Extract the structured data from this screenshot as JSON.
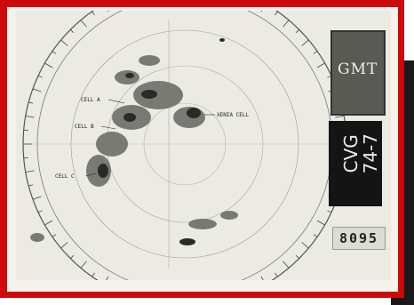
{
  "radar": {
    "cells": [
      {
        "label": "CELL A"
      },
      {
        "label": "CELL B"
      },
      {
        "label": "CELL C"
      },
      {
        "label": "XENIA CELL"
      }
    ],
    "clock_label": "GMT",
    "station_line1": "CVG",
    "station_line2": "74-7",
    "counter": "8095"
  },
  "colors": {
    "frame_red": "#cc0a0a",
    "paper": "#ecebe3"
  }
}
